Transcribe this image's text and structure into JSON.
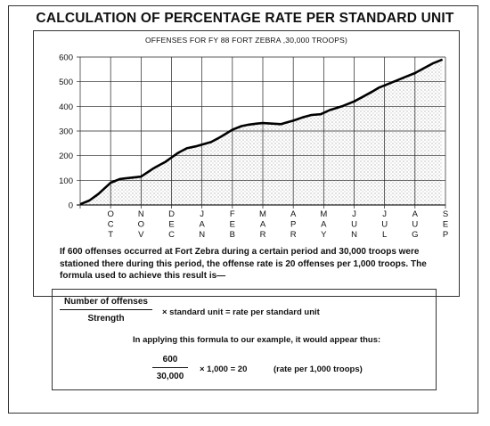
{
  "title": "CALCULATION OF PERCENTAGE RATE PER STANDARD UNIT",
  "chart_data": {
    "type": "area",
    "title": "OFFENSES FOR FY 88 FORT ZEBRA ,30,000 TROOPS)",
    "xlabel": "",
    "ylabel": "",
    "ylim": [
      0,
      600
    ],
    "yticks": [
      "0",
      "100",
      "200",
      "300",
      "400",
      "500",
      "600"
    ],
    "grid": true,
    "months": [
      [
        "O",
        "C",
        "T"
      ],
      [
        "N",
        "O",
        "V"
      ],
      [
        "D",
        "E",
        "C"
      ],
      [
        "J",
        "A",
        "N"
      ],
      [
        "F",
        "E",
        "B"
      ],
      [
        "M",
        "A",
        "R"
      ],
      [
        "A",
        "P",
        "R"
      ],
      [
        "M",
        "A",
        "Y"
      ],
      [
        "J",
        "U",
        "N"
      ],
      [
        "J",
        "U",
        "L"
      ],
      [
        "A",
        "U",
        "G"
      ],
      [
        "S",
        "E",
        "P"
      ]
    ],
    "x": [
      0,
      0.3,
      0.6,
      1.0,
      1.3,
      1.5,
      2.0,
      2.4,
      2.5,
      2.8,
      3.2,
      3.5,
      3.8,
      4.0,
      4.3,
      4.6,
      5.0,
      5.3,
      5.5,
      5.8,
      6.0,
      6.3,
      6.6,
      6.8,
      7.0,
      7.3,
      7.6,
      7.9,
      8.2,
      8.6,
      9.0,
      9.3,
      9.6,
      9.8,
      10.0,
      10.4,
      10.7,
      11.0,
      11.3,
      11.6,
      11.9
    ],
    "values": [
      3,
      18,
      45,
      90,
      105,
      108,
      115,
      148,
      155,
      175,
      210,
      230,
      238,
      245,
      255,
      275,
      305,
      320,
      325,
      330,
      332,
      330,
      328,
      335,
      342,
      355,
      365,
      368,
      385,
      400,
      420,
      440,
      460,
      475,
      485,
      505,
      520,
      535,
      555,
      575,
      590
    ]
  },
  "paragraph": "If 600 offenses occurred at Fort Zebra during a certain period and 30,000 troops were stationed there during this period, the offense rate is 20 offenses per 1,000 troops. The formula used to achieve this result is—",
  "formula": {
    "numerator": "Number of offenses",
    "denominator": "Strength",
    "rhs": "× standard unit = rate per standard unit",
    "applying": "In applying this formula to our example, it would appear thus:",
    "ex_numerator": "600",
    "ex_denominator": "30,000",
    "ex_rhs": "× 1,000 = 20",
    "ex_note": "(rate per 1,000 troops)"
  }
}
